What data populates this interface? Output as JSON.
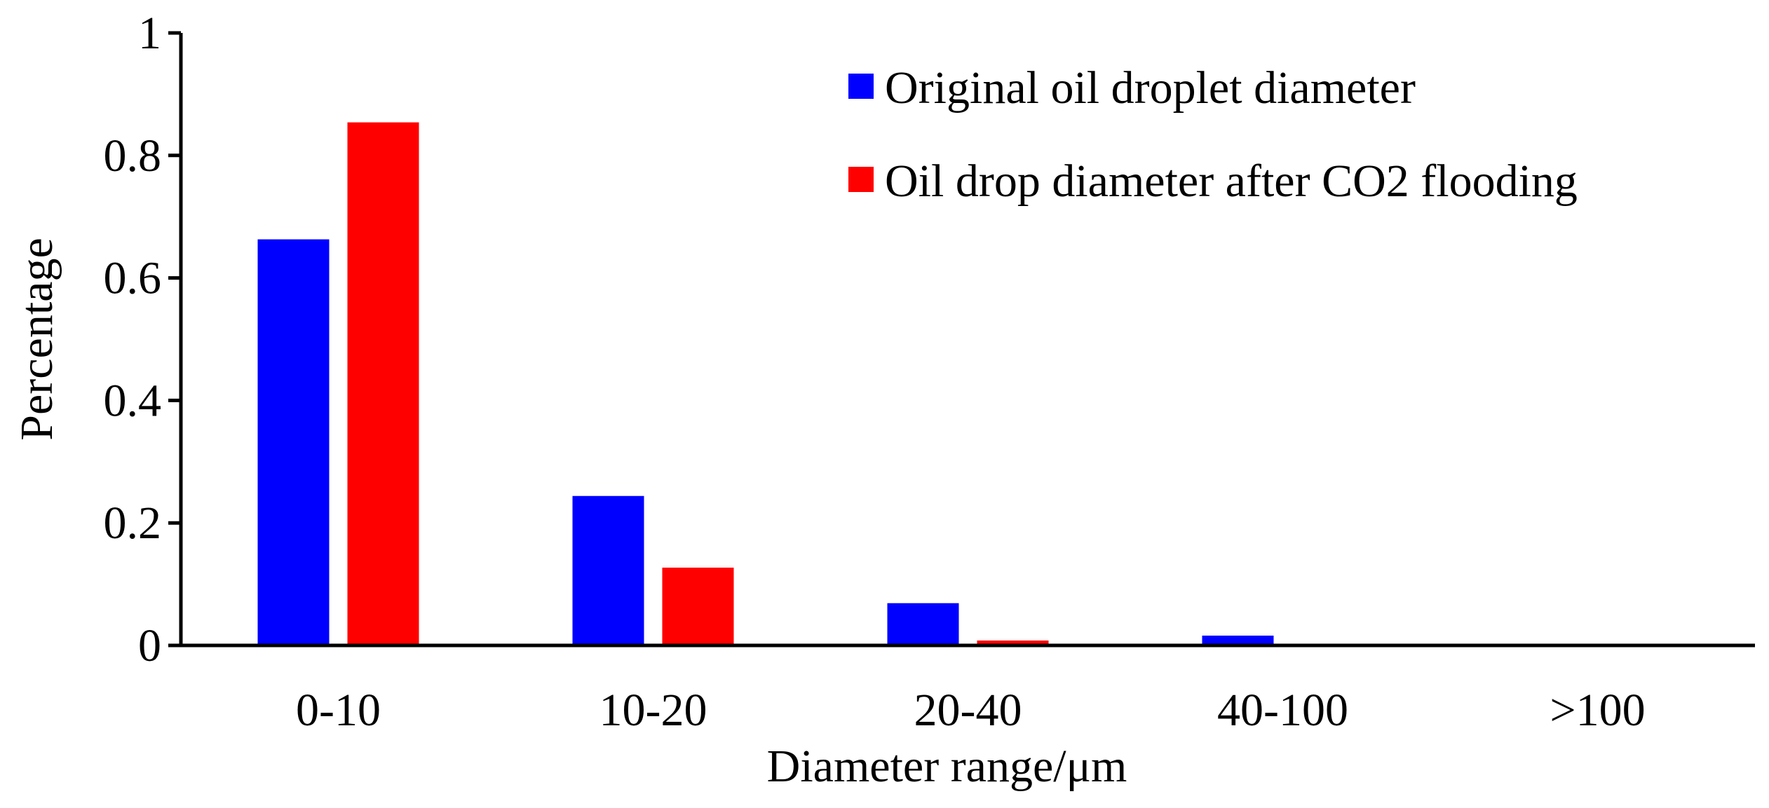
{
  "chart_data": {
    "type": "bar",
    "title": "",
    "xlabel": "Diameter range/μm",
    "ylabel": "Percentage",
    "categories": [
      "0-10",
      "10-20",
      "20-40",
      "40-100",
      ">100"
    ],
    "ylim": [
      0,
      1
    ],
    "yticks": [
      0,
      0.2,
      0.4,
      0.6,
      0.8,
      1
    ],
    "ytick_labels": [
      "0",
      "0.2",
      "0.4",
      "0.6",
      "0.8",
      "1"
    ],
    "grid": false,
    "legend_position": "top-right",
    "series": [
      {
        "name": "Original oil droplet diameter",
        "color": "#0000ff",
        "values": [
          0.663,
          0.244,
          0.069,
          0.016,
          0.0
        ]
      },
      {
        "name": "Oil drop diameter after CO2 flooding",
        "color": "#ff0000",
        "values": [
          0.854,
          0.127,
          0.008,
          0.0,
          0.0
        ]
      }
    ]
  }
}
